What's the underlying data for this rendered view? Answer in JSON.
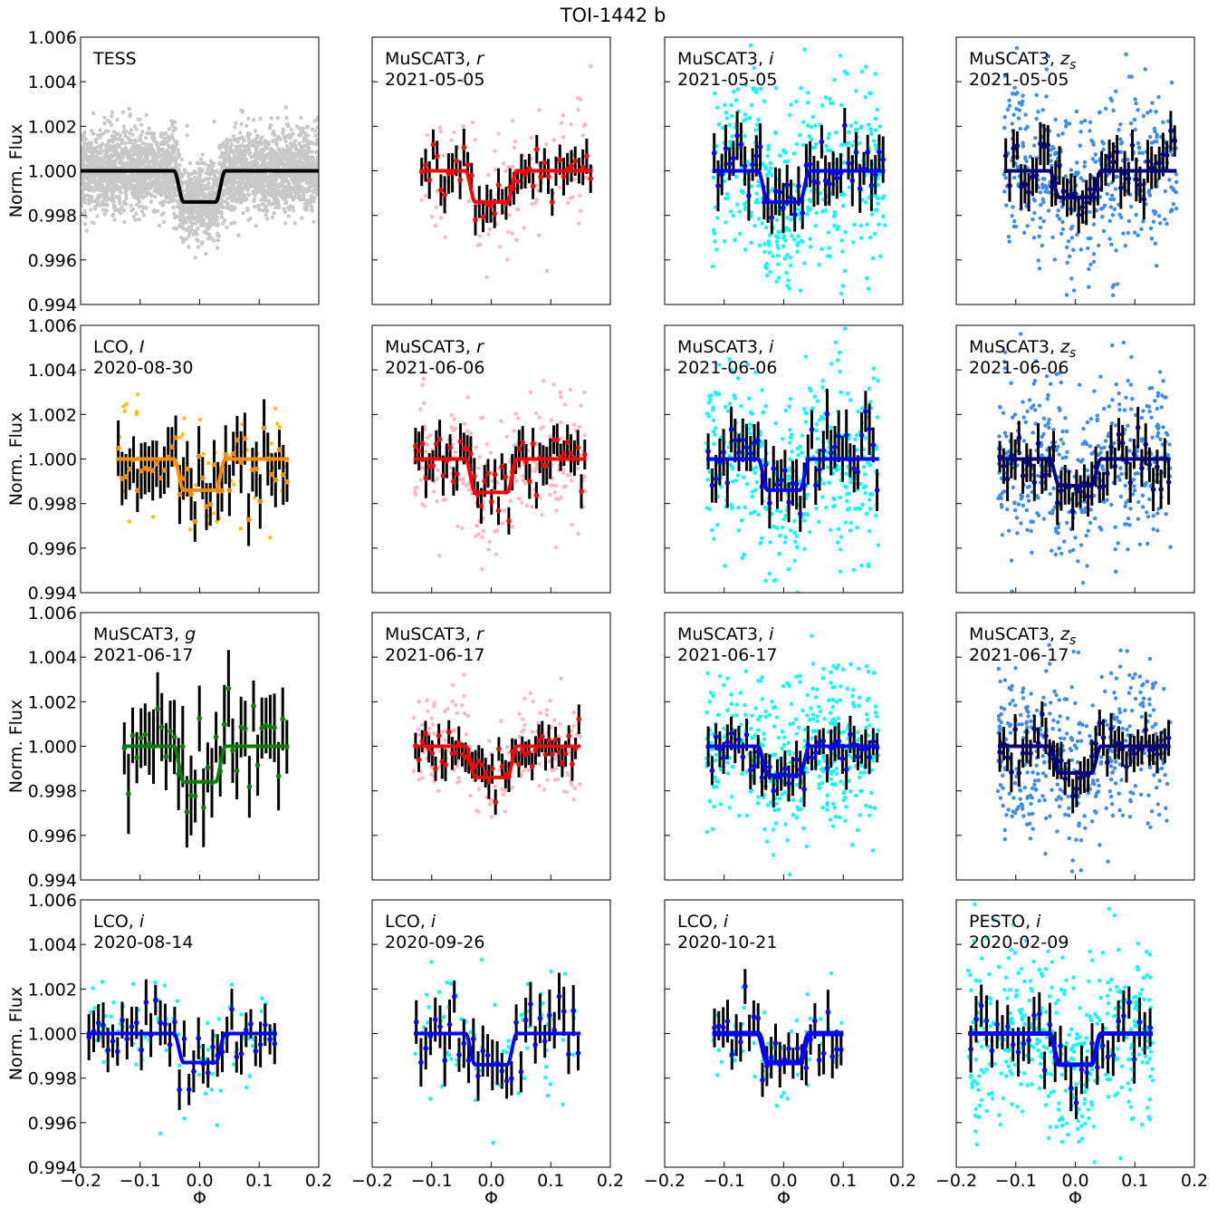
{
  "figure": {
    "title": "TOI-1442 b",
    "ylabel": "Norm. Flux",
    "xlabel": "Φ"
  },
  "chart_data": {
    "type": "scatter",
    "layout": "4x4 grid, shared axes",
    "xlim": [
      -0.2,
      0.2
    ],
    "ylim": [
      0.994,
      1.006
    ],
    "xticks": [
      -0.2,
      -0.1,
      0.0,
      0.1,
      0.2
    ],
    "xtick_labels": [
      "−0.2",
      "−0.1",
      "0.0",
      "0.1",
      "0.2"
    ],
    "yticks": [
      0.994,
      0.996,
      0.998,
      1.0,
      1.002,
      1.004,
      1.006
    ],
    "ytick_labels": [
      "0.994",
      "0.996",
      "0.998",
      "1.000",
      "1.002",
      "1.004",
      "1.006"
    ],
    "transit_model": {
      "center": 0.0,
      "half_width": 0.035,
      "ingress": 0.008
    },
    "panels": [
      {
        "instrument": "TESS",
        "band": "",
        "date": "",
        "depth": 0.0014,
        "x_range": [
          -0.2,
          0.2
        ],
        "n_raw": 3200,
        "raw_scatter": 0.0009,
        "n_binned": 0,
        "binned_err": 0,
        "raw_color": "#c8c8c8",
        "binned_color": "#000000",
        "model_color": "#000000",
        "model_width": 4
      },
      {
        "instrument": "MuSCAT3",
        "band": "r",
        "date": "2021-05-05",
        "depth": 0.0014,
        "x_range": [
          -0.12,
          0.17
        ],
        "n_raw": 120,
        "raw_scatter": 0.0016,
        "n_binned": 45,
        "binned_err": 0.0007,
        "raw_color": "#ffb6c1",
        "binned_color": "#ff0000",
        "model_color": "#ff0000",
        "model_width": 4
      },
      {
        "instrument": "MuSCAT3",
        "band": "i",
        "date": "2021-05-05",
        "depth": 0.0014,
        "x_range": [
          -0.12,
          0.17
        ],
        "n_raw": 420,
        "raw_scatter": 0.0022,
        "n_binned": 45,
        "binned_err": 0.0009,
        "raw_color": "#00ffff",
        "binned_color": "#0000ff",
        "model_color": "#0000ff",
        "model_width": 4
      },
      {
        "instrument": "MuSCAT3",
        "band": "z_s",
        "date": "2021-05-05",
        "depth": 0.0012,
        "x_range": [
          -0.12,
          0.17
        ],
        "n_raw": 420,
        "raw_scatter": 0.002,
        "n_binned": 45,
        "binned_err": 0.0008,
        "raw_color": "#3c8cf0",
        "binned_color": "#000080",
        "model_color": "#000080",
        "model_width": 4
      },
      {
        "instrument": "LCO",
        "band": "I",
        "date": "2020-08-30",
        "depth": 0.0014,
        "x_range": [
          -0.14,
          0.15
        ],
        "n_raw": 60,
        "raw_scatter": 0.0017,
        "n_binned": 45,
        "binned_err": 0.0011,
        "raw_color": "#ffc000",
        "binned_color": "#ff8c00",
        "model_color": "#ff8c00",
        "model_width": 4
      },
      {
        "instrument": "MuSCAT3",
        "band": "r",
        "date": "2021-06-06",
        "depth": 0.0015,
        "x_range": [
          -0.13,
          0.16
        ],
        "n_raw": 240,
        "raw_scatter": 0.0015,
        "n_binned": 50,
        "binned_err": 0.0007,
        "raw_color": "#ffb6c1",
        "binned_color": "#ff0000",
        "model_color": "#ff0000",
        "model_width": 4
      },
      {
        "instrument": "MuSCAT3",
        "band": "i",
        "date": "2021-06-06",
        "depth": 0.0014,
        "x_range": [
          -0.13,
          0.16
        ],
        "n_raw": 420,
        "raw_scatter": 0.0022,
        "n_binned": 45,
        "binned_err": 0.0009,
        "raw_color": "#00ffff",
        "binned_color": "#0000ff",
        "model_color": "#0000ff",
        "model_width": 4
      },
      {
        "instrument": "MuSCAT3",
        "band": "z_s",
        "date": "2021-06-06",
        "depth": 0.0012,
        "x_range": [
          -0.13,
          0.16
        ],
        "n_raw": 420,
        "raw_scatter": 0.002,
        "n_binned": 45,
        "binned_err": 0.0008,
        "raw_color": "#3c8cf0",
        "binned_color": "#000080",
        "model_color": "#000080",
        "model_width": 4
      },
      {
        "instrument": "MuSCAT3",
        "band": "g",
        "date": "2021-06-17",
        "depth": 0.0016,
        "x_range": [
          -0.13,
          0.15
        ],
        "n_raw": 0,
        "raw_scatter": 0,
        "n_binned": 40,
        "binned_err": 0.0014,
        "raw_color": "#008000",
        "binned_color": "#008000",
        "model_color": "#008000",
        "model_width": 4
      },
      {
        "instrument": "MuSCAT3",
        "band": "r",
        "date": "2021-06-17",
        "depth": 0.0014,
        "x_range": [
          -0.13,
          0.15
        ],
        "n_raw": 180,
        "raw_scatter": 0.0012,
        "n_binned": 50,
        "binned_err": 0.0006,
        "raw_color": "#ffb6c1",
        "binned_color": "#ff0000",
        "model_color": "#ff0000",
        "model_width": 4
      },
      {
        "instrument": "MuSCAT3",
        "band": "i",
        "date": "2021-06-17",
        "depth": 0.0013,
        "x_range": [
          -0.13,
          0.16
        ],
        "n_raw": 420,
        "raw_scatter": 0.0018,
        "n_binned": 45,
        "binned_err": 0.0007,
        "raw_color": "#00ffff",
        "binned_color": "#0000ff",
        "model_color": "#0000ff",
        "model_width": 4
      },
      {
        "instrument": "MuSCAT3",
        "band": "z_s",
        "date": "2021-06-17",
        "depth": 0.0012,
        "x_range": [
          -0.13,
          0.16
        ],
        "n_raw": 420,
        "raw_scatter": 0.0018,
        "n_binned": 45,
        "binned_err": 0.0007,
        "raw_color": "#3c8cf0",
        "binned_color": "#000080",
        "model_color": "#000080",
        "model_width": 4
      },
      {
        "instrument": "LCO",
        "band": "i",
        "date": "2020-08-14",
        "depth": 0.0013,
        "x_range": [
          -0.19,
          0.13
        ],
        "n_raw": 90,
        "raw_scatter": 0.0012,
        "n_binned": 40,
        "binned_err": 0.0008,
        "raw_color": "#00ffff",
        "binned_color": "#0000ff",
        "model_color": "#0000ff",
        "model_width": 4
      },
      {
        "instrument": "LCO",
        "band": "i",
        "date": "2020-09-26",
        "depth": 0.0014,
        "x_range": [
          -0.13,
          0.15
        ],
        "n_raw": 80,
        "raw_scatter": 0.0015,
        "n_binned": 35,
        "binned_err": 0.0009,
        "raw_color": "#00ffff",
        "binned_color": "#0000ff",
        "model_color": "#0000ff",
        "model_width": 4
      },
      {
        "instrument": "LCO",
        "band": "i",
        "date": "2020-10-21",
        "depth": 0.0013,
        "x_range": [
          -0.12,
          0.1
        ],
        "n_raw": 60,
        "raw_scatter": 0.0011,
        "n_binned": 30,
        "binned_err": 0.0008,
        "raw_color": "#00ffff",
        "binned_color": "#0000ff",
        "model_color": "#0000ff",
        "model_width": 6
      },
      {
        "instrument": "PESTO",
        "band": "i",
        "date": "2020-02-09",
        "depth": 0.0014,
        "x_range": [
          -0.18,
          0.13
        ],
        "n_raw": 420,
        "raw_scatter": 0.0022,
        "n_binned": 35,
        "binned_err": 0.0009,
        "raw_color": "#00ffff",
        "binned_color": "#0000ff",
        "model_color": "#0000ff",
        "model_width": 5
      }
    ]
  }
}
